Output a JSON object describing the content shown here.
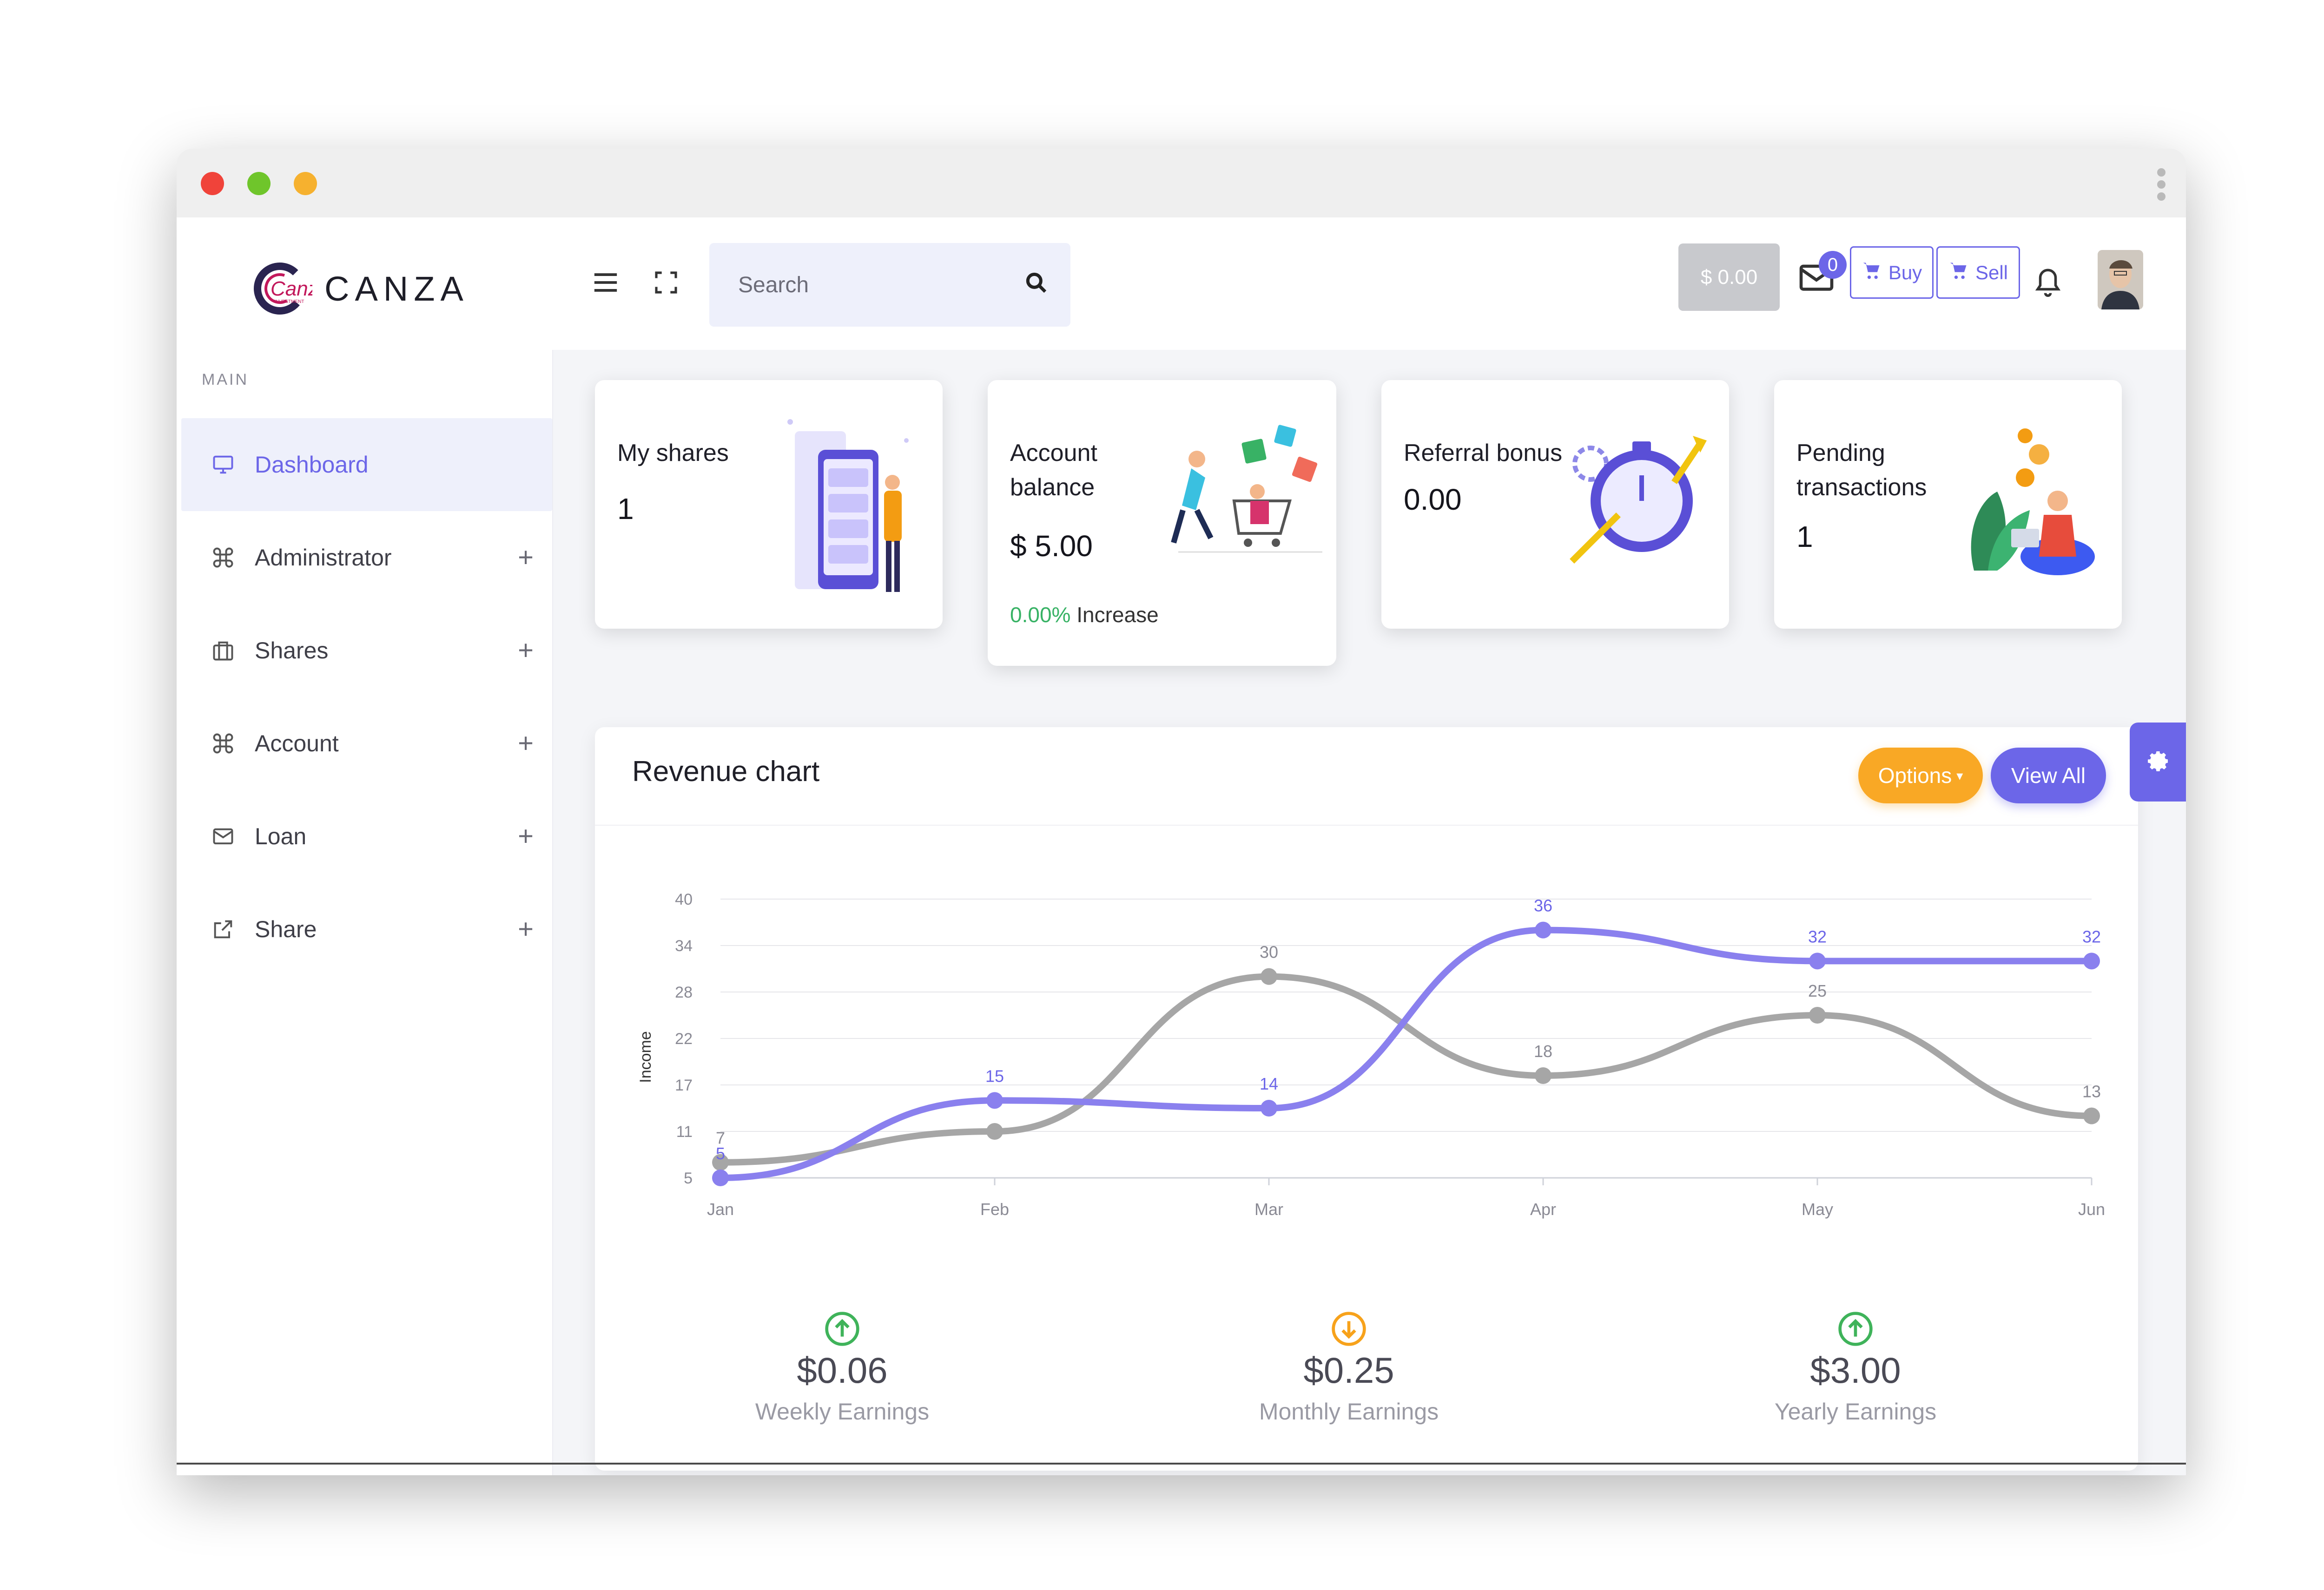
{
  "brand": {
    "logo_mark": "Canza",
    "logo_sub": "INVESTMENT",
    "name": "CANZA"
  },
  "sidebar": {
    "section_label": "MAIN",
    "items": [
      {
        "label": "Dashboard",
        "icon": "monitor-icon",
        "active": true
      },
      {
        "label": "Administrator",
        "icon": "command-icon",
        "expandable": true
      },
      {
        "label": "Shares",
        "icon": "briefcase-icon",
        "expandable": true
      },
      {
        "label": "Account",
        "icon": "command-icon",
        "expandable": true
      },
      {
        "label": "Loan",
        "icon": "envelope-icon",
        "expandable": true
      },
      {
        "label": "Share",
        "icon": "external-link-icon",
        "expandable": true
      }
    ],
    "plus": "+"
  },
  "topbar": {
    "search_placeholder": "Search",
    "balance": "$ 0.00",
    "mail_count": "0",
    "buy_label": "Buy",
    "sell_label": "Sell"
  },
  "cards": [
    {
      "title": "My shares",
      "value": "1"
    },
    {
      "title": "Account balance",
      "value": "$ 5.00",
      "change": "0.00%",
      "change_label": "Increase"
    },
    {
      "title": "Referral bonus",
      "value": "0.00"
    },
    {
      "title": "Pending transactions",
      "value": "1"
    }
  ],
  "revenue": {
    "title": "Revenue chart",
    "options_label": "Options",
    "view_all_label": "View All"
  },
  "chart_data": {
    "type": "line",
    "ylabel": "Income",
    "categories": [
      "Jan",
      "Feb",
      "Mar",
      "Apr",
      "May",
      "Jun"
    ],
    "y_ticks": [
      5,
      11,
      17,
      22,
      28,
      34,
      40
    ],
    "ylim": [
      5,
      40
    ],
    "grid": true,
    "series": [
      {
        "values": [
          7,
          11,
          30,
          18,
          25,
          13
        ],
        "color": "#a6a6a6",
        "labels": [
          "7",
          "",
          "30",
          "18",
          "25",
          "13"
        ]
      },
      {
        "values": [
          5,
          15,
          14,
          36,
          32,
          32
        ],
        "color": "#8a80ee",
        "labels": [
          "5",
          "15",
          "14",
          "36",
          "32",
          "32"
        ]
      }
    ]
  },
  "earnings": [
    {
      "value": "$0.06",
      "label": "Weekly Earnings",
      "direction": "up",
      "color": "#3fb35a"
    },
    {
      "value": "$0.25",
      "label": "Monthly Earnings",
      "direction": "down",
      "color": "#f7a21b"
    },
    {
      "value": "$3.00",
      "label": "Yearly Earnings",
      "direction": "up",
      "color": "#3fb35a"
    }
  ],
  "colors": {
    "accent": "#6c66e8",
    "orange": "#f9a825",
    "green": "#38b265"
  }
}
